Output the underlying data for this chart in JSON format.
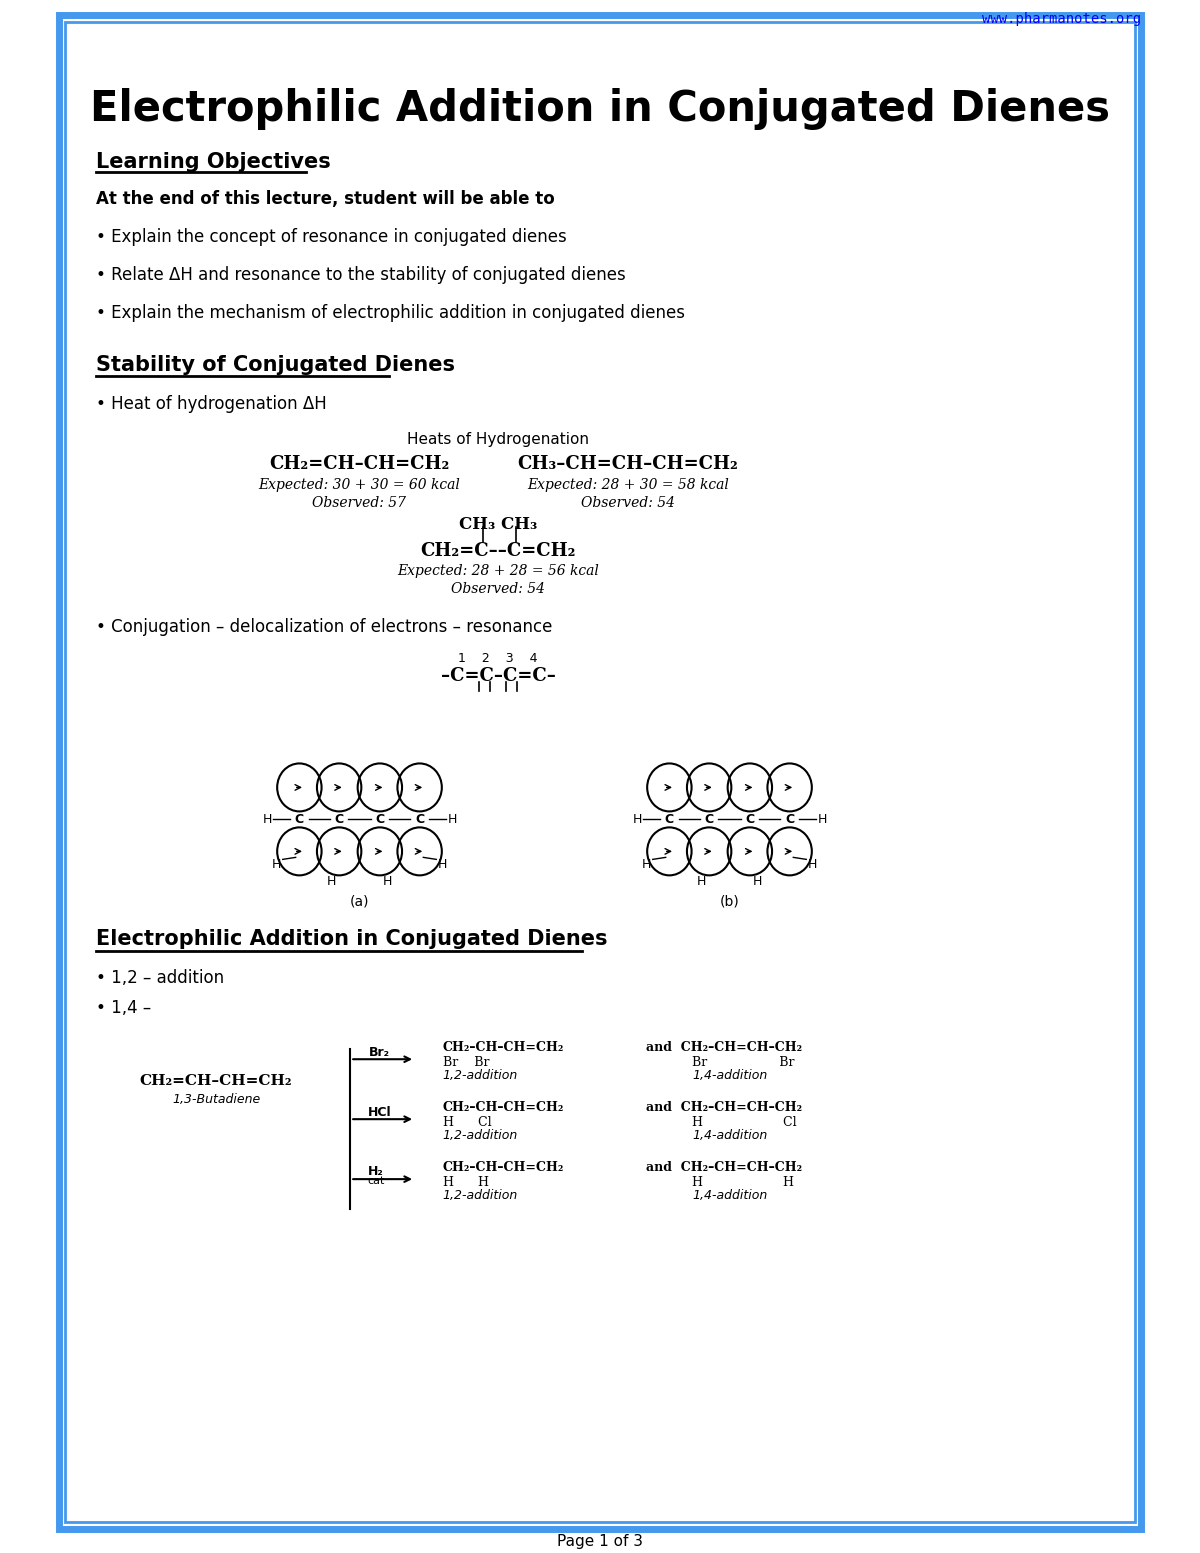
{
  "title": "Electrophilic Addition in Conjugated Dienes",
  "website": "www.pharmanotes.org",
  "bg_color": "#ffffff",
  "border_color": "#3399ff",
  "title_color": "#000000",
  "section_color": "#000000",
  "website_color": "#0000ff",
  "page_footer": "Page 1 of 3"
}
